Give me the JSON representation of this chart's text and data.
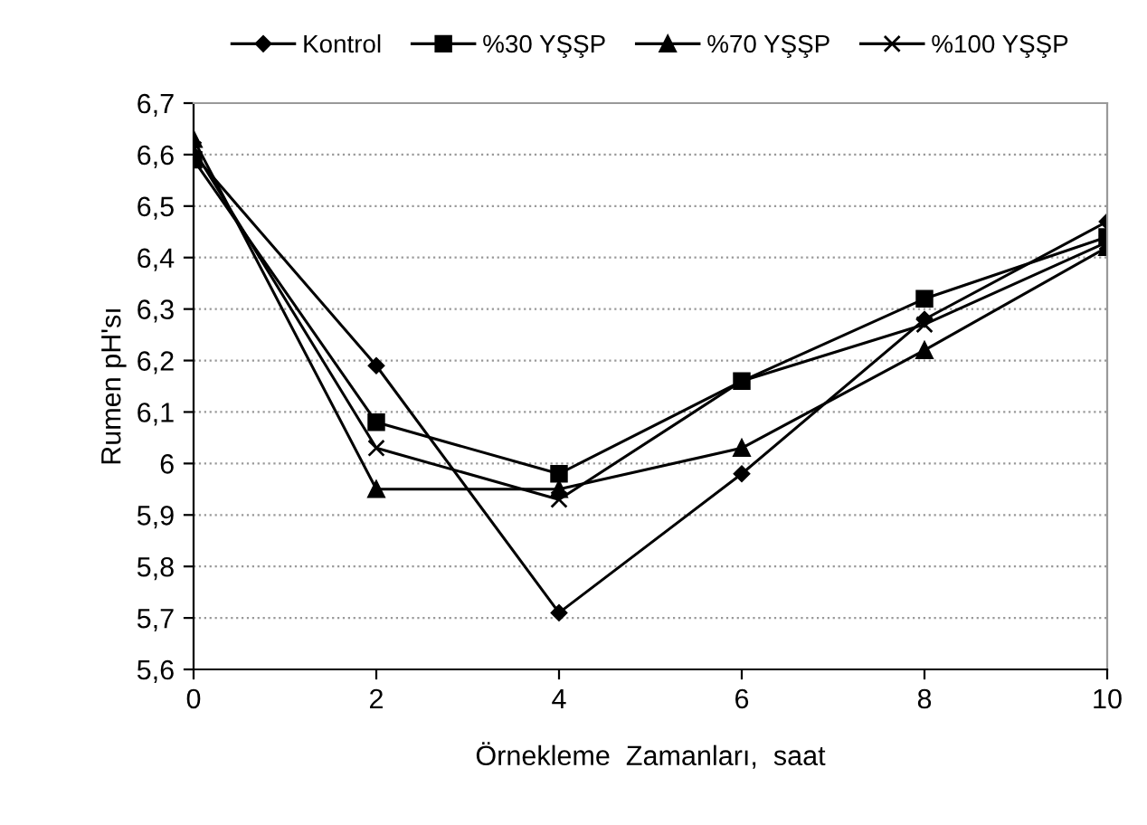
{
  "chart_data": {
    "type": "line",
    "xlabel": "Örnekleme  Zamanları,  saat",
    "ylabel": "Rumen pH'sı",
    "x": [
      0,
      2,
      4,
      6,
      8,
      10
    ],
    "series": [
      {
        "name": "Kontrol",
        "color": "#000000",
        "marker": "diamond",
        "values": [
          6.6,
          6.19,
          5.71,
          5.98,
          6.28,
          6.47
        ]
      },
      {
        "name": "%30 YŞŞP",
        "color": "#000000",
        "marker": "square",
        "values": [
          6.59,
          6.08,
          5.98,
          6.16,
          6.32,
          6.44
        ]
      },
      {
        "name": "%70 YŞŞP",
        "color": "#000000",
        "marker": "triangle",
        "values": [
          6.63,
          5.95,
          5.95,
          6.03,
          6.22,
          6.42
        ]
      },
      {
        "name": "%100 YŞŞP",
        "color": "#000000",
        "marker": "cross",
        "values": [
          6.61,
          6.03,
          5.93,
          6.16,
          6.27,
          6.43
        ]
      }
    ],
    "xlim": [
      0,
      10
    ],
    "xticks": [
      0,
      2,
      4,
      6,
      8,
      10
    ],
    "ylim": [
      5.6,
      6.7
    ],
    "yticks": [
      {
        "value": 5.6,
        "label": "5,6"
      },
      {
        "value": 5.7,
        "label": "5,7"
      },
      {
        "value": 5.8,
        "label": "5,8"
      },
      {
        "value": 5.9,
        "label": "5,9"
      },
      6,
      {
        "value": 6.1,
        "label": "6,1"
      },
      {
        "value": 6.2,
        "label": "6,2"
      },
      {
        "value": 6.3,
        "label": "6,3"
      },
      {
        "value": 6.4,
        "label": "6,4"
      },
      {
        "value": 6.5,
        "label": "6,5"
      },
      {
        "value": 6.6,
        "label": "6,6"
      },
      {
        "value": 6.7,
        "label": "6,7"
      }
    ],
    "grid": "y",
    "legend": "top",
    "line_style": "solid"
  }
}
